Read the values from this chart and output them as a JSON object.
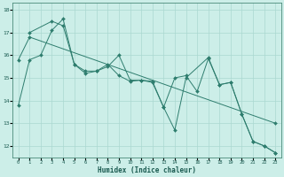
{
  "xlabel": "Humidex (Indice chaleur)",
  "bg_color": "#cceee8",
  "line_color": "#2e7d6e",
  "grid_color": "#aad8d0",
  "xlim": [
    -0.5,
    23.5
  ],
  "ylim": [
    11.5,
    18.3
  ],
  "yticks": [
    12,
    13,
    14,
    15,
    16,
    17,
    18
  ],
  "xticks": [
    0,
    1,
    2,
    3,
    4,
    5,
    6,
    7,
    8,
    9,
    10,
    11,
    12,
    13,
    14,
    15,
    16,
    17,
    18,
    19,
    20,
    21,
    22,
    23
  ],
  "series": [
    {
      "x": [
        0,
        1,
        2,
        3,
        4,
        5,
        6,
        7,
        8,
        9,
        10,
        11,
        12,
        13,
        14,
        15,
        16,
        17,
        18,
        19,
        20,
        21,
        22,
        23
      ],
      "y": [
        13.8,
        15.8,
        16.0,
        17.1,
        17.6,
        15.6,
        15.2,
        15.3,
        15.6,
        15.1,
        14.85,
        14.9,
        14.85,
        13.7,
        15.0,
        15.1,
        14.4,
        15.85,
        14.7,
        14.8,
        13.4,
        12.2,
        12.0,
        11.7
      ]
    },
    {
      "x": [
        1,
        3,
        4,
        5,
        6,
        7,
        8,
        9,
        10,
        11,
        12,
        13,
        14,
        15,
        17,
        18,
        19,
        20,
        21,
        22,
        23
      ],
      "y": [
        17.0,
        17.5,
        17.3,
        15.6,
        15.3,
        15.3,
        15.5,
        16.0,
        14.9,
        14.9,
        14.8,
        13.7,
        12.7,
        15.0,
        15.9,
        14.7,
        14.8,
        13.4,
        12.2,
        12.0,
        11.7
      ]
    },
    {
      "x": [
        0,
        1,
        23
      ],
      "y": [
        15.8,
        16.8,
        13.0
      ]
    }
  ]
}
